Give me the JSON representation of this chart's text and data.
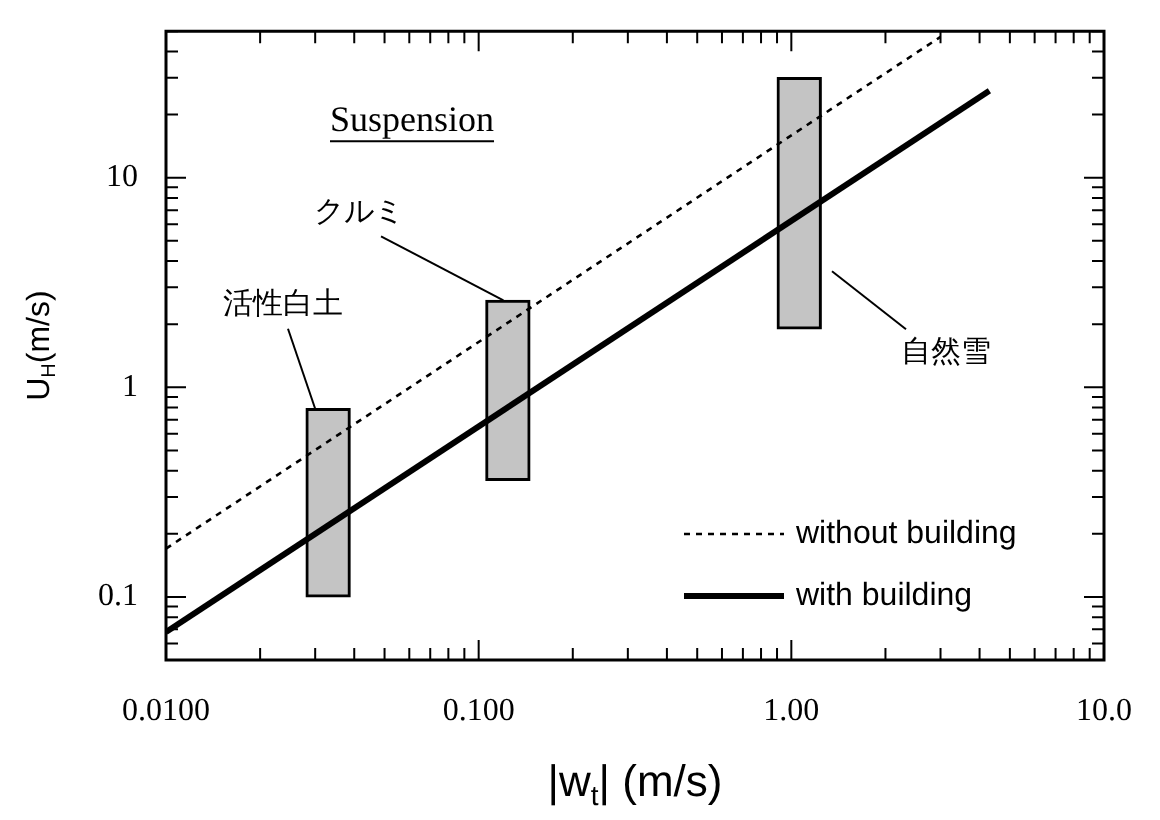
{
  "chart_data": {
    "type": "line",
    "xlabel": "|w$_{t}$| (m/s)",
    "ylabel": "U$_{H}$(m/s)",
    "log": "xy",
    "grid": false,
    "legend": "bottom right",
    "marker": "none",
    "xlim": [
      0.01,
      10
    ],
    "ylim": [
      0.05,
      50
    ],
    "xticks": [
      {
        "value": 0.01,
        "label": "0.0100"
      },
      {
        "value": 0.02,
        "label": null
      },
      {
        "value": 0.03,
        "label": null
      },
      {
        "value": 0.04,
        "label": null
      },
      {
        "value": 0.05,
        "label": null
      },
      {
        "value": 0.06,
        "label": null
      },
      {
        "value": 0.07,
        "label": null
      },
      {
        "value": 0.08,
        "label": null
      },
      {
        "value": 0.09,
        "label": null
      },
      {
        "value": 0.1,
        "label": "0.100"
      },
      {
        "value": 0.2,
        "label": null
      },
      {
        "value": 0.3,
        "label": null
      },
      {
        "value": 0.4,
        "label": null
      },
      {
        "value": 0.5,
        "label": null
      },
      {
        "value": 0.6,
        "label": null
      },
      {
        "value": 0.7,
        "label": null
      },
      {
        "value": 0.8,
        "label": null
      },
      {
        "value": 0.9,
        "label": null
      },
      {
        "value": 1,
        "label": "1.00"
      },
      {
        "value": 2,
        "label": null
      },
      {
        "value": 3,
        "label": null
      },
      {
        "value": 4,
        "label": null
      },
      {
        "value": 5,
        "label": null
      },
      {
        "value": 6,
        "label": null
      },
      {
        "value": 7,
        "label": null
      },
      {
        "value": 8,
        "label": null
      },
      {
        "value": 9,
        "label": null
      },
      {
        "value": 10,
        "label": "10.0"
      }
    ],
    "yticks": [
      {
        "value": 0.05,
        "label": null
      },
      {
        "value": 0.06,
        "label": null
      },
      {
        "value": 0.07,
        "label": null
      },
      {
        "value": 0.08,
        "label": null
      },
      {
        "value": 0.09,
        "label": null
      },
      0.1,
      {
        "value": 0.2,
        "label": null
      },
      {
        "value": 0.3,
        "label": null
      },
      {
        "value": 0.4,
        "label": null
      },
      {
        "value": 0.5,
        "label": null
      },
      {
        "value": 0.6,
        "label": null
      },
      {
        "value": 0.7,
        "label": null
      },
      {
        "value": 0.8,
        "label": null
      },
      {
        "value": 0.9,
        "label": null
      },
      1,
      {
        "value": 2,
        "label": null
      },
      {
        "value": 3,
        "label": null
      },
      {
        "value": 4,
        "label": null
      },
      {
        "value": 5,
        "label": null
      },
      {
        "value": 6,
        "label": null
      },
      {
        "value": 7,
        "label": null
      },
      {
        "value": 8,
        "label": null
      },
      {
        "value": 9,
        "label": null
      },
      10,
      {
        "value": 20,
        "label": null
      },
      {
        "value": 30,
        "label": null
      },
      {
        "value": 40,
        "label": null
      },
      {
        "value": 50,
        "label": null
      }
    ],
    "series": [
      {
        "type": "bar",
        "color": "#c4c4c4",
        "x": [
          0.033,
          0.124,
          1.06
        ],
        "base": [
          0.1,
          0.36,
          1.9
        ],
        "values": [
          0.69,
          2.24,
          28.1
        ]
      },
      {
        "name": "without building",
        "line_style": "dotted",
        "color": "#000000",
        "x": [
          0.01,
          3.0
        ],
        "values": [
          0.17,
          47
        ]
      },
      {
        "name": "with building",
        "line_style": "solid",
        "color": "#000000",
        "x": [
          0.01,
          4.3
        ],
        "values": [
          0.068,
          26
        ]
      }
    ],
    "annotations": [
      "Suspension",
      {
        "text": "活性白土",
        "x": 0.03,
        "y": 0.79
      },
      {
        "text": "クルミ",
        "x": 0.12,
        "y": 2.6
      },
      "自然雪"
    ]
  }
}
